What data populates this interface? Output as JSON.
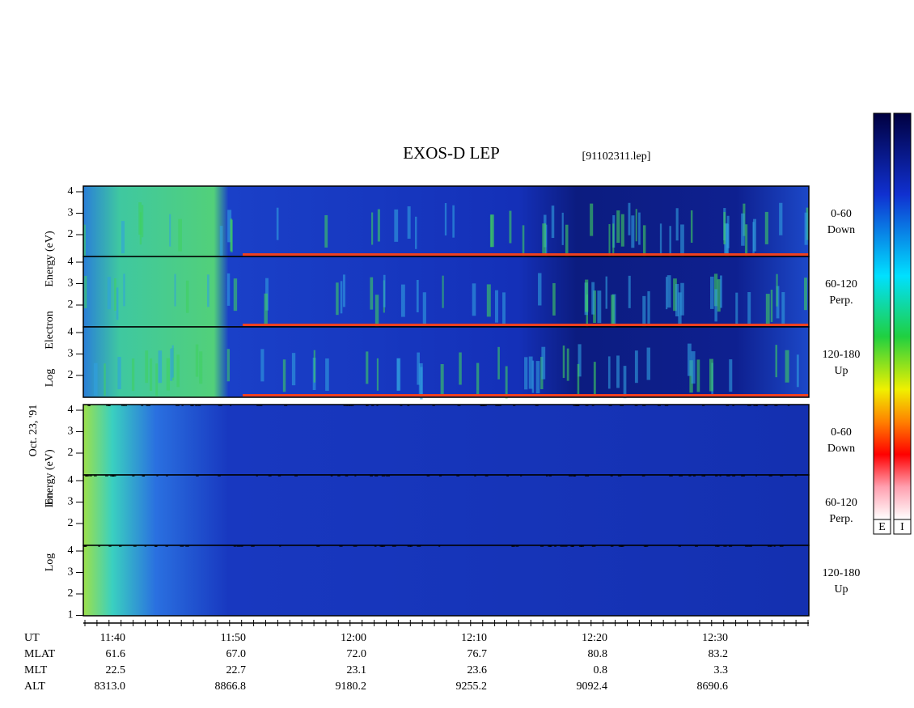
{
  "header": {
    "title": "EXOS-D LEP",
    "file": "[91102311.lep]"
  },
  "date": "Oct. 23, '91",
  "groups": [
    {
      "axis_label": [
        "Log",
        "Electron",
        "Energy (eV)"
      ],
      "panels": [
        {
          "ticks": [
            4,
            3,
            2
          ],
          "label": [
            "0-60",
            "Down"
          ]
        },
        {
          "ticks": [
            4,
            3,
            2
          ],
          "label": [
            "60-120",
            "Perp."
          ]
        },
        {
          "ticks": [
            4,
            3,
            2
          ],
          "label": [
            "120-180",
            "Up"
          ]
        }
      ]
    },
    {
      "axis_label": [
        "Log",
        "Ion",
        "Energy (eV)"
      ],
      "panels": [
        {
          "ticks": [
            4,
            3,
            2
          ],
          "label": [
            "0-60",
            "Down"
          ]
        },
        {
          "ticks": [
            4,
            3,
            2
          ],
          "label": [
            "60-120",
            "Perp."
          ]
        },
        {
          "ticks": [
            4,
            3,
            2,
            1
          ],
          "label": [
            "120-180",
            "Up"
          ]
        }
      ]
    }
  ],
  "time_axis": {
    "rows": [
      {
        "name": "UT",
        "values": [
          "11:40",
          "11:50",
          "12:00",
          "12:10",
          "12:20",
          "12:30"
        ]
      },
      {
        "name": "MLAT",
        "values": [
          "61.6",
          "67.0",
          "72.0",
          "76.7",
          "80.8",
          "83.2"
        ]
      },
      {
        "name": "MLT",
        "values": [
          "22.5",
          "22.7",
          "23.1",
          "23.6",
          "0.8",
          "3.3"
        ]
      },
      {
        "name": "ALT",
        "values": [
          "8313.0",
          "8866.8",
          "9180.2",
          "9255.2",
          "9092.4",
          "8690.6"
        ]
      }
    ]
  },
  "colorbar": {
    "labels": [
      "E",
      "I"
    ]
  }
}
